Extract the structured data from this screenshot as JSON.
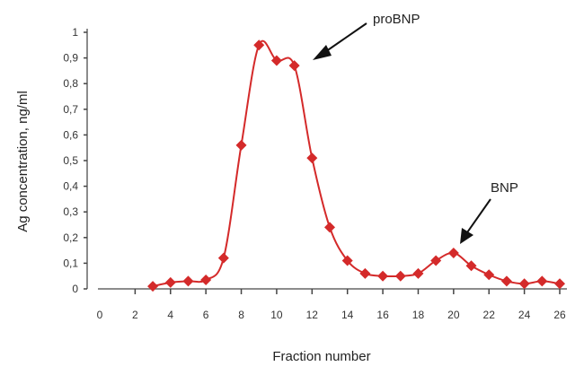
{
  "chart_data": {
    "type": "line",
    "title": "",
    "xlabel": "Fraction number",
    "ylabel": "Ag concentration, ng/ml",
    "xlim": [
      0,
      26
    ],
    "ylim": [
      0,
      1
    ],
    "xticks": [
      "0",
      "2",
      "4",
      "6",
      "8",
      "10",
      "12",
      "14",
      "16",
      "18",
      "20",
      "22",
      "24",
      "26"
    ],
    "yticks": [
      "0",
      "0,1",
      "0,2",
      "0,3",
      "0,4",
      "0,5",
      "0,6",
      "0,7",
      "0,8",
      "0,9",
      "1"
    ],
    "grid": false,
    "line_color": "#d42a2a",
    "marker": "diamond",
    "x": [
      3,
      4,
      5,
      6,
      7,
      8,
      9,
      10,
      11,
      12,
      13,
      14,
      15,
      16,
      17,
      18,
      19,
      20,
      21,
      22,
      23,
      24,
      25,
      26
    ],
    "y": [
      0.01,
      0.025,
      0.03,
      0.035,
      0.12,
      0.56,
      0.95,
      0.89,
      0.87,
      0.51,
      0.24,
      0.11,
      0.06,
      0.05,
      0.05,
      0.06,
      0.11,
      0.14,
      0.09,
      0.055,
      0.03,
      0.02,
      0.03,
      0.02
    ],
    "annotations": [
      {
        "text": "proBNP",
        "x": 11,
        "y": 0.87
      },
      {
        "text": "BNP",
        "x": 20,
        "y": 0.14
      }
    ]
  }
}
